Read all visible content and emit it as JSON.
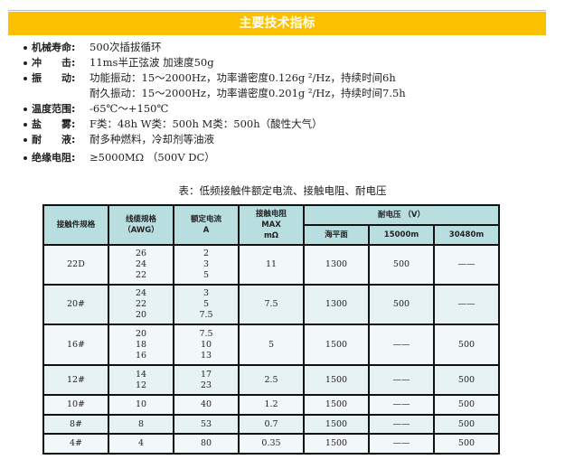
{
  "banner": {
    "title": "主要技术指标"
  },
  "specs": [
    {
      "label": "机械寿命:",
      "value": "500次插拔循环"
    },
    {
      "label": "冲　　击:",
      "value": "11ms半正弦波 加速度50g"
    },
    {
      "label": "振　　动:",
      "value": " 功能振动：15～2000Hz，功率谱密度0.126g ²/Hz，持续时间6h"
    },
    {
      "label": "",
      "value": " 耐久振动：15～2000Hz，功率谱密度0.201g ²/Hz，持续时间7.5h"
    },
    {
      "label": "温度范围:",
      "value": "-65℃～+150℃"
    },
    {
      "label": "盐　　雾:",
      "value": " F类：48h  W类：500h   M类：500h（酸性大气）"
    },
    {
      "label": "耐　　液:",
      "value": "耐多种燃料，冷却剂等油液"
    },
    {
      "label": "绝缘电阻:",
      "value": "≥5000MΩ  （500V DC）"
    }
  ],
  "table": {
    "caption": "表：低频接触件额定电流、接触电阻、耐电压",
    "headers": {
      "contact": "接触件规格",
      "wire": "线缆规格\n（AWG）",
      "current": "额定电流\nA",
      "resistance": "接触电阻\nMAX\nmΩ",
      "voltage": "耐电压 （V）",
      "sea": "海平面",
      "alt1": "15000m",
      "alt2": "30480m"
    },
    "rows": [
      {
        "contact": "22D",
        "wire": "26\n24\n22",
        "current": "2\n3\n5",
        "resistance": "11",
        "sea": "1300",
        "alt1": "500",
        "alt2": "——"
      },
      {
        "contact": "20#",
        "wire": "24\n22\n20",
        "current": "3\n5\n7.5",
        "resistance": "7.5",
        "sea": "1300",
        "alt1": "500",
        "alt2": "——"
      },
      {
        "contact": "16#",
        "wire": "20\n18\n16",
        "current": "7.5\n10\n13",
        "resistance": "5",
        "sea": "1500",
        "alt1": "——",
        "alt2": "500"
      },
      {
        "contact": "12#",
        "wire": "14\n12",
        "current": "17\n23",
        "resistance": "2.5",
        "sea": "1500",
        "alt1": "——",
        "alt2": "500"
      },
      {
        "contact": "10#",
        "wire": "10",
        "current": "40",
        "resistance": "1.2",
        "sea": "1500",
        "alt1": "——",
        "alt2": "500"
      },
      {
        "contact": "8#",
        "wire": "8",
        "current": "53",
        "resistance": "0.7",
        "sea": "1500",
        "alt1": "——",
        "alt2": "500"
      },
      {
        "contact": "4#",
        "wire": "4",
        "current": "80",
        "resistance": "0.35",
        "sea": "1500",
        "alt1": "——",
        "alt2": "500"
      }
    ]
  }
}
